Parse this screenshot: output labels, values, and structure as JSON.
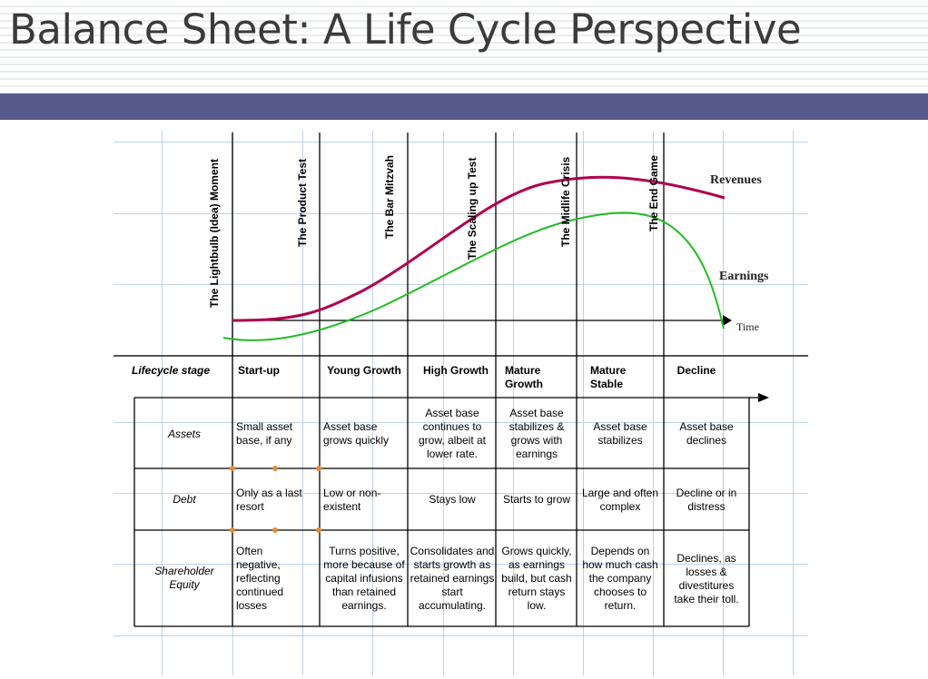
{
  "slide": {
    "title": "Balance Sheet: A Life Cycle Perspective",
    "band_color": "#565a8a"
  },
  "chart": {
    "revenues_label": "Revenues",
    "earnings_label": "Earnings",
    "time_label": "Time",
    "revenues_color": "#b0004e",
    "earnings_color": "#22bb22"
  },
  "milestones": [
    "The Lightbulb (Idea) Moment",
    "The Product Test",
    "The Bar Mitzvah",
    "The Scaling up Test",
    "The Midlife Crisis",
    "The End Game"
  ],
  "table": {
    "stage_header": "Lifecycle stage",
    "stages": [
      "Start-up",
      "Young Growth",
      "High Growth",
      "Mature Growth",
      "Mature Stable",
      "Decline"
    ],
    "rows": [
      {
        "label": "Assets",
        "cells": [
          "Small asset base, if any",
          "Asset base grows quickly",
          "Asset base continues to grow, albeit at lower rate.",
          "Asset base stabilizes & grows with earnings",
          "Asset base stabilizes",
          "Asset base declines"
        ]
      },
      {
        "label": "Debt",
        "cells": [
          "Only as a last resort",
          "Low or non-existent",
          "Stays low",
          "Starts to grow",
          "Large and often complex",
          "Decline or in distress"
        ]
      },
      {
        "label": "Shareholder Equity",
        "cells": [
          "Often negative, reflecting continued losses",
          "Turns positive, more because of capital infusions than retained earnings.",
          "Consolidates and starts growth as retained earnings start accumulating.",
          "Grows quickly, as earnings build, but cash return stays low.",
          "Depends on how much cash the company chooses to return.",
          "Declines, as losses & divestitures take their toll."
        ]
      }
    ]
  }
}
